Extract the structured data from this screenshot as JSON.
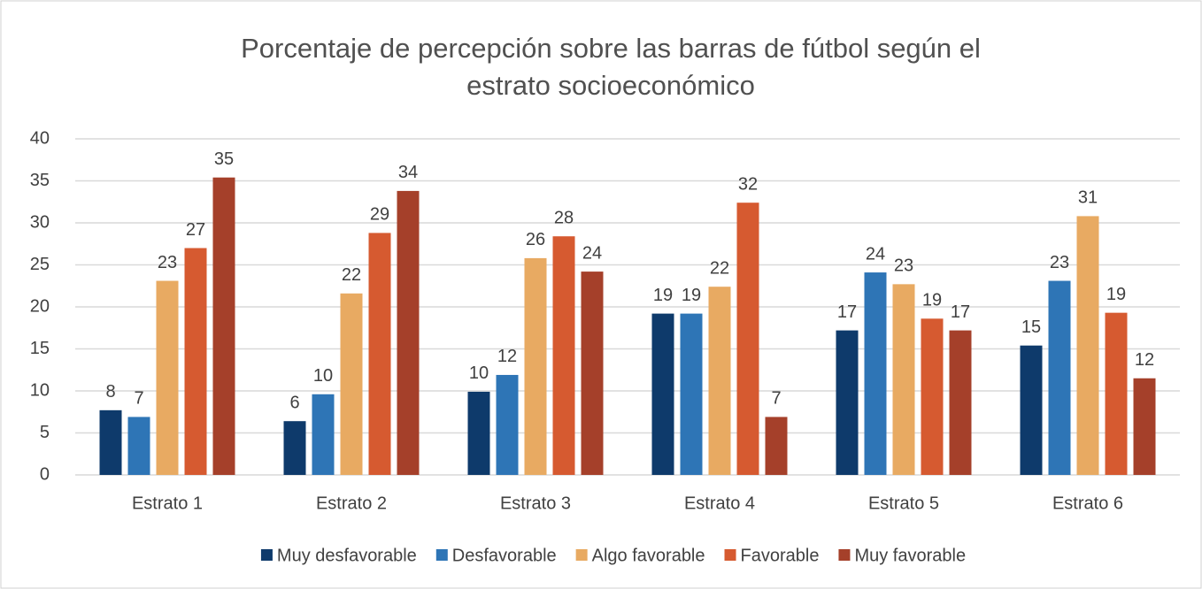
{
  "chart_data": {
    "type": "bar",
    "title": [
      "Porcentaje de percepción sobre las barras de fútbol según el",
      "estrato socioeconómico"
    ],
    "categories": [
      "Estrato 1",
      "Estrato 2",
      "Estrato 3",
      "Estrato 4",
      "Estrato 5",
      "Estrato 6"
    ],
    "series": [
      {
        "name": "Muy desfavorable",
        "color": "#0e3a6b",
        "values": [
          7.7,
          6.4,
          9.9,
          19.2,
          17.2,
          15.4
        ],
        "value_labels": [
          "8",
          "6",
          "10",
          "19",
          "17",
          "15"
        ]
      },
      {
        "name": "Desfavorable",
        "color": "#2e75b6",
        "values": [
          6.9,
          9.6,
          11.9,
          19.2,
          24.1,
          23.1
        ],
        "value_labels": [
          "7",
          "10",
          "12",
          "19",
          "24",
          "23"
        ]
      },
      {
        "name": "Algo favorable",
        "color": "#e8aa62",
        "values": [
          23.1,
          21.6,
          25.8,
          22.4,
          22.7,
          30.8
        ],
        "value_labels": [
          "23",
          "22",
          "26",
          "22",
          "23",
          "31"
        ]
      },
      {
        "name": "Favorable",
        "color": "#d65a30",
        "values": [
          27,
          28.8,
          28.4,
          32.4,
          18.6,
          19.3
        ],
        "value_labels": [
          "27",
          "29",
          "28",
          "32",
          "19",
          "19"
        ]
      },
      {
        "name": "Muy favorable",
        "color": "#a5402a",
        "values": [
          35.4,
          33.8,
          24.2,
          6.9,
          17.2,
          11.5
        ],
        "value_labels": [
          "35",
          "34",
          "24",
          "7",
          "17",
          "12"
        ]
      }
    ],
    "ylim": [
      0,
      40
    ],
    "yticks": [
      0,
      5,
      10,
      15,
      20,
      25,
      30,
      35,
      40
    ],
    "grid": true,
    "legend": "bottom"
  }
}
